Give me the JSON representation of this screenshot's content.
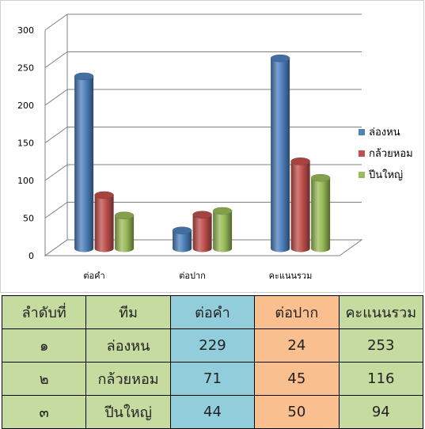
{
  "chart_data": {
    "type": "bar",
    "subtype": "3d-cylinder",
    "categories": [
      "ต่อคำ",
      "ต่อปาก",
      "คะแนนรวม"
    ],
    "series": [
      {
        "name": "ล่องหน",
        "values": [
          229,
          24,
          253
        ],
        "color": "#4f81bd"
      },
      {
        "name": "กล้วยหอม",
        "values": [
          71,
          45,
          116
        ],
        "color": "#c0504d"
      },
      {
        "name": "ปีนใหญ่",
        "values": [
          44,
          50,
          94
        ],
        "color": "#9bbb59"
      }
    ],
    "y_ticks": [
      "0",
      "50",
      "100",
      "150",
      "200",
      "250",
      "300"
    ],
    "ylim": [
      0,
      300
    ],
    "grid": true,
    "legend": "right"
  },
  "table": {
    "headers": [
      "ลำดับที่",
      "ทีม",
      "ต่อคำ",
      "ต่อปาก",
      "คะแนนรวม"
    ],
    "rows": [
      [
        "๑",
        "ล่องหน",
        "229",
        "24",
        "253"
      ],
      [
        "๒",
        "กล้วยหอม",
        "71",
        "45",
        "116"
      ],
      [
        "๓",
        "ปีนใหญ่",
        "44",
        "50",
        "94"
      ]
    ],
    "colors": {
      "green": "#c6dba0",
      "blue": "#92cddc",
      "orange": "#fabf8f"
    }
  }
}
